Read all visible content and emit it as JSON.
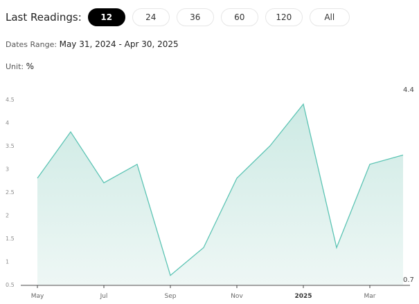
{
  "header": {
    "label": "Last Readings:",
    "options": [
      "12",
      "24",
      "36",
      "60",
      "120",
      "All"
    ],
    "active_index": 0
  },
  "dates_range": {
    "label": "Dates Range:",
    "value": "May 31, 2024 - Apr 30, 2025"
  },
  "unit": {
    "label": "Unit:",
    "value": "%"
  },
  "colors": {
    "line": "#5cc4b4",
    "fill_top": "#cdeae4",
    "fill_bottom": "#eef7f5",
    "active_pill": "#000000"
  },
  "chart_data": {
    "type": "area",
    "x": [
      "2024-05-31",
      "2024-06-30",
      "2024-07-31",
      "2024-08-31",
      "2024-09-30",
      "2024-10-31",
      "2024-11-30",
      "2024-12-31",
      "2025-01-31",
      "2025-02-28",
      "2025-03-31",
      "2025-04-30"
    ],
    "y": [
      2.8,
      3.8,
      2.7,
      3.1,
      0.7,
      1.3,
      2.8,
      3.5,
      4.4,
      1.3,
      3.1,
      3.3
    ],
    "yticks": [
      "4.5",
      "4",
      "3.5",
      "3",
      "2.5",
      "2",
      "1.5",
      "1",
      "0.5"
    ],
    "xticks": [
      "May",
      "Jul",
      "Sep",
      "Nov",
      "2025",
      "Mar"
    ],
    "ylim": [
      0.5,
      4.5
    ],
    "max_label": "4.4",
    "min_label": "0.7",
    "grid": false,
    "legend": "none"
  }
}
